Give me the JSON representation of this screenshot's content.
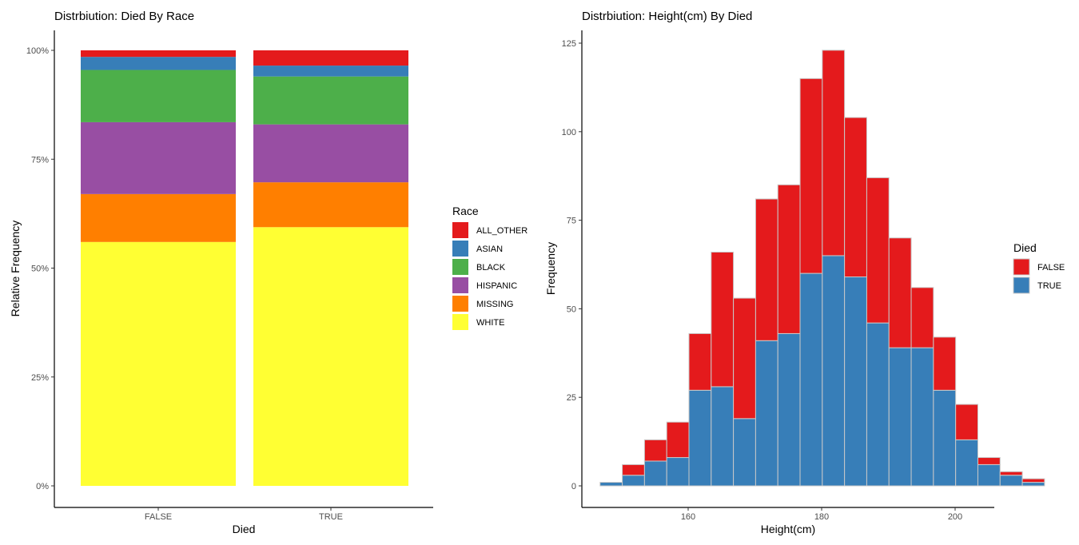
{
  "chart_data": [
    {
      "type": "bar",
      "stacked": "fill",
      "title": "Distrbiution: Died By Race",
      "xlabel": "Died",
      "ylabel": "Relative Frequency",
      "categories": [
        "FALSE",
        "TRUE"
      ],
      "ylim": [
        0,
        100
      ],
      "yticks": [
        0,
        25,
        50,
        75,
        100
      ],
      "ytick_labels": [
        "0%",
        "25%",
        "50%",
        "75%",
        "100%"
      ],
      "grid": false,
      "legend": {
        "title": "Race",
        "position": "right"
      },
      "series": [
        {
          "name": "ALL_OTHER",
          "color": "#E41A1C",
          "values": [
            1.5,
            3.5
          ]
        },
        {
          "name": "ASIAN",
          "color": "#377EB8",
          "values": [
            3.0,
            2.5
          ]
        },
        {
          "name": "BLACK",
          "color": "#4DAF4A",
          "values": [
            12.0,
            11.0
          ]
        },
        {
          "name": "HISPANIC",
          "color": "#984EA3",
          "values": [
            16.5,
            13.3
          ]
        },
        {
          "name": "MISSING",
          "color": "#FF7F00",
          "values": [
            11.0,
            10.3
          ]
        },
        {
          "name": "WHITE",
          "color": "#FFFF33",
          "values": [
            56.0,
            59.4
          ]
        }
      ]
    },
    {
      "type": "bar",
      "subtype": "stacked-histogram",
      "title": "Distrbiution: Height(cm) By Died",
      "xlabel": "Height(cm)",
      "ylabel": "Frequency",
      "bin_width": 3.33,
      "bin_start": 146.8,
      "xlim": [
        145,
        205
      ],
      "xticks": [
        160,
        180,
        200
      ],
      "ylim": [
        0,
        125
      ],
      "yticks": [
        0,
        25,
        50,
        75,
        100,
        125
      ],
      "grid": false,
      "legend": {
        "title": "Died",
        "position": "right"
      },
      "series": [
        {
          "name": "FALSE",
          "color": "#E41A1C",
          "values": [
            0,
            3,
            6,
            10,
            16,
            38,
            34,
            40,
            42,
            55,
            58,
            45,
            41,
            31,
            17,
            15,
            10,
            2,
            1,
            1
          ]
        },
        {
          "name": "TRUE",
          "color": "#377EB8",
          "values": [
            1,
            3,
            7,
            8,
            27,
            28,
            19,
            41,
            43,
            60,
            65,
            59,
            46,
            39,
            39,
            27,
            13,
            6,
            3,
            1
          ]
        }
      ]
    }
  ]
}
